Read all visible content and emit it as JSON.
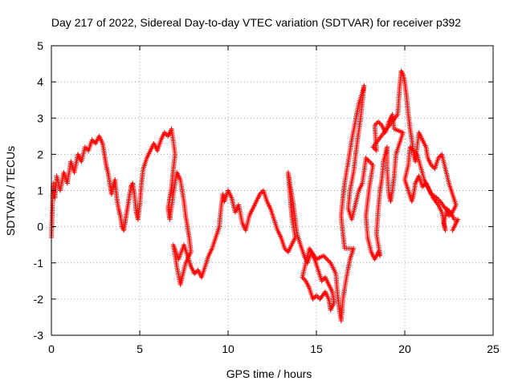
{
  "chart_data": {
    "type": "scatter",
    "title": "Day 217 of 2022, Sidereal Day-to-day VTEC variation (SDTVAR) for receiver p392",
    "xlabel": "GPS time / hours",
    "ylabel": "SDTVAR / TECUs",
    "xlim": [
      0,
      25
    ],
    "ylim": [
      -3,
      5
    ],
    "xticks": [
      0,
      5,
      10,
      15,
      20,
      25
    ],
    "yticks": [
      -3,
      -2,
      -1,
      0,
      1,
      2,
      3,
      4,
      5
    ],
    "grid": true,
    "marker": "+",
    "series": [
      {
        "name": "SDTVAR",
        "color": "#ff0000",
        "points": [
          [
            0.0,
            -0.3
          ],
          [
            0.05,
            0.4
          ],
          [
            0.1,
            1.2
          ],
          [
            0.2,
            0.8
          ],
          [
            0.3,
            1.4
          ],
          [
            0.5,
            1.0
          ],
          [
            0.7,
            1.5
          ],
          [
            0.9,
            1.2
          ],
          [
            1.1,
            1.8
          ],
          [
            1.3,
            1.5
          ],
          [
            1.5,
            2.0
          ],
          [
            1.7,
            1.8
          ],
          [
            1.9,
            2.2
          ],
          [
            2.1,
            2.1
          ],
          [
            2.3,
            2.4
          ],
          [
            2.5,
            2.3
          ],
          [
            2.7,
            2.5
          ],
          [
            2.9,
            2.3
          ],
          [
            3.0,
            2.0
          ],
          [
            3.1,
            1.7
          ],
          [
            3.2,
            1.5
          ],
          [
            3.3,
            1.2
          ],
          [
            3.4,
            0.9
          ],
          [
            3.5,
            1.1
          ],
          [
            3.6,
            1.3
          ],
          [
            3.7,
            0.8
          ],
          [
            3.8,
            0.5
          ],
          [
            3.9,
            0.3
          ],
          [
            4.0,
            0.0
          ],
          [
            4.1,
            -0.1
          ],
          [
            4.2,
            0.2
          ],
          [
            4.3,
            0.5
          ],
          [
            4.4,
            0.8
          ],
          [
            4.5,
            1.1
          ],
          [
            4.6,
            1.2
          ],
          [
            4.7,
            0.9
          ],
          [
            4.8,
            0.4
          ],
          [
            4.9,
            0.2
          ],
          [
            5.0,
            0.6
          ],
          [
            5.1,
            1.2
          ],
          [
            5.2,
            1.6
          ],
          [
            5.4,
            1.9
          ],
          [
            5.6,
            2.1
          ],
          [
            5.8,
            2.3
          ],
          [
            6.0,
            2.1
          ],
          [
            6.2,
            2.4
          ],
          [
            6.4,
            2.6
          ],
          [
            6.6,
            2.5
          ],
          [
            6.8,
            2.7
          ],
          [
            7.0,
            2.0
          ],
          [
            6.9,
            1.6
          ],
          [
            6.8,
            1.1
          ],
          [
            6.7,
            0.8
          ],
          [
            6.6,
            0.5
          ],
          [
            6.7,
            0.2
          ],
          [
            6.9,
            0.9
          ],
          [
            7.1,
            1.5
          ],
          [
            7.3,
            1.3
          ],
          [
            7.5,
            0.7
          ],
          [
            7.6,
            0.3
          ],
          [
            7.7,
            0.0
          ],
          [
            7.8,
            -0.3
          ],
          [
            7.9,
            -0.7
          ],
          [
            7.6,
            -1.0
          ],
          [
            7.4,
            -1.4
          ],
          [
            7.3,
            -1.6
          ],
          [
            7.1,
            -1.1
          ],
          [
            6.9,
            -0.5
          ],
          [
            7.2,
            -0.9
          ],
          [
            7.5,
            -0.5
          ],
          [
            7.7,
            -0.8
          ],
          [
            7.9,
            -1.1
          ],
          [
            8.1,
            -1.3
          ],
          [
            8.3,
            -1.2
          ],
          [
            8.5,
            -1.4
          ],
          [
            8.7,
            -1.1
          ],
          [
            8.9,
            -0.8
          ],
          [
            9.1,
            -0.6
          ],
          [
            9.3,
            -0.3
          ],
          [
            9.5,
            0.0
          ],
          [
            9.6,
            0.5
          ],
          [
            9.7,
            0.9
          ],
          [
            9.8,
            0.7
          ],
          [
            10.0,
            1.0
          ],
          [
            10.2,
            0.8
          ],
          [
            10.4,
            0.4
          ],
          [
            10.6,
            0.6
          ],
          [
            10.8,
            0.1
          ],
          [
            11.0,
            -0.1
          ],
          [
            11.2,
            0.3
          ],
          [
            11.4,
            0.5
          ],
          [
            11.6,
            0.7
          ],
          [
            11.8,
            0.9
          ],
          [
            12.0,
            1.0
          ],
          [
            12.2,
            0.7
          ],
          [
            12.4,
            0.5
          ],
          [
            12.6,
            0.2
          ],
          [
            12.8,
            -0.1
          ],
          [
            13.0,
            -0.3
          ],
          [
            13.2,
            -0.6
          ],
          [
            13.4,
            -0.7
          ],
          [
            13.6,
            -0.5
          ],
          [
            13.8,
            -0.3
          ],
          [
            13.6,
            0.3
          ],
          [
            13.5,
            0.9
          ],
          [
            13.4,
            1.5
          ],
          [
            13.7,
            0.6
          ],
          [
            13.9,
            -0.2
          ],
          [
            14.1,
            -0.5
          ],
          [
            14.3,
            -0.8
          ],
          [
            14.5,
            -1.0
          ],
          [
            14.7,
            -0.7
          ],
          [
            14.9,
            -0.9
          ],
          [
            15.1,
            -1.2
          ],
          [
            15.3,
            -1.5
          ],
          [
            15.5,
            -1.4
          ],
          [
            15.7,
            -1.6
          ],
          [
            15.9,
            -1.8
          ],
          [
            16.0,
            -2.1
          ],
          [
            15.8,
            -2.3
          ],
          [
            15.7,
            -2.0
          ],
          [
            15.5,
            -1.8
          ],
          [
            15.2,
            -2.0
          ],
          [
            15.0,
            -1.9
          ],
          [
            14.8,
            -2.0
          ],
          [
            14.6,
            -1.7
          ],
          [
            14.4,
            -1.5
          ],
          [
            14.2,
            -1.4
          ],
          [
            14.6,
            -0.6
          ],
          [
            15.0,
            -0.9
          ],
          [
            15.4,
            -0.8
          ],
          [
            15.8,
            -1.0
          ],
          [
            16.1,
            -1.3
          ],
          [
            16.2,
            -1.9
          ],
          [
            16.3,
            -2.3
          ],
          [
            16.4,
            -2.6
          ],
          [
            16.5,
            -2.0
          ],
          [
            16.7,
            -1.4
          ],
          [
            16.9,
            -0.9
          ],
          [
            17.1,
            -0.6
          ],
          [
            16.6,
            -0.6
          ],
          [
            16.5,
            -0.2
          ],
          [
            16.4,
            0.3
          ],
          [
            16.5,
            0.8
          ],
          [
            16.6,
            1.2
          ],
          [
            16.8,
            1.8
          ],
          [
            17.0,
            2.4
          ],
          [
            17.2,
            2.9
          ],
          [
            17.4,
            3.4
          ],
          [
            17.6,
            3.7
          ],
          [
            17.7,
            3.9
          ],
          [
            17.5,
            3.0
          ],
          [
            17.3,
            2.3
          ],
          [
            17.1,
            1.5
          ],
          [
            16.9,
            1.0
          ],
          [
            16.8,
            0.5
          ],
          [
            17.0,
            0.2
          ],
          [
            17.2,
            0.6
          ],
          [
            17.4,
            1.0
          ],
          [
            17.6,
            1.2
          ],
          [
            17.8,
            1.9
          ],
          [
            18.0,
            1.8
          ],
          [
            18.2,
            1.7
          ],
          [
            18.0,
            1.1
          ],
          [
            17.9,
            0.7
          ],
          [
            17.8,
            0.3
          ],
          [
            17.9,
            -0.3
          ],
          [
            18.1,
            -0.7
          ],
          [
            18.3,
            -0.9
          ],
          [
            18.5,
            -0.7
          ],
          [
            18.6,
            -0.8
          ],
          [
            18.4,
            -0.2
          ],
          [
            18.5,
            0.5
          ],
          [
            18.6,
            1.0
          ],
          [
            18.7,
            1.3
          ],
          [
            18.8,
            1.8
          ],
          [
            18.9,
            2.0
          ],
          [
            19.0,
            2.2
          ],
          [
            19.0,
            1.6
          ],
          [
            19.1,
            0.9
          ],
          [
            19.2,
            0.7
          ],
          [
            19.3,
            1.0
          ],
          [
            19.4,
            1.4
          ],
          [
            19.5,
            2.0
          ],
          [
            19.7,
            2.3
          ],
          [
            19.9,
            2.6
          ],
          [
            19.4,
            2.7
          ],
          [
            19.3,
            3.1
          ],
          [
            19.1,
            2.9
          ],
          [
            18.9,
            2.6
          ],
          [
            18.7,
            2.8
          ],
          [
            18.5,
            2.9
          ],
          [
            18.3,
            2.8
          ],
          [
            18.4,
            2.1
          ],
          [
            18.2,
            2.2
          ],
          [
            19.6,
            3.1
          ],
          [
            19.7,
            3.8
          ],
          [
            19.8,
            4.3
          ],
          [
            19.9,
            4.2
          ],
          [
            20.0,
            4.0
          ],
          [
            20.1,
            3.6
          ],
          [
            20.2,
            3.1
          ],
          [
            20.3,
            2.7
          ],
          [
            20.4,
            2.4
          ],
          [
            20.5,
            2.0
          ],
          [
            20.6,
            1.8
          ],
          [
            20.8,
            2.6
          ],
          [
            21.0,
            2.4
          ],
          [
            21.2,
            2.2
          ],
          [
            21.3,
            1.9
          ],
          [
            21.5,
            1.7
          ],
          [
            21.7,
            1.6
          ],
          [
            21.9,
            1.9
          ],
          [
            22.1,
            2.0
          ],
          [
            22.3,
            1.6
          ],
          [
            22.5,
            1.2
          ],
          [
            22.7,
            0.9
          ],
          [
            22.9,
            0.6
          ],
          [
            22.7,
            0.4
          ],
          [
            22.5,
            0.3
          ],
          [
            22.4,
            0.5
          ],
          [
            22.2,
            0.1
          ],
          [
            22.3,
            -0.1
          ],
          [
            22.1,
            0.4
          ],
          [
            21.9,
            0.6
          ],
          [
            21.6,
            0.8
          ],
          [
            21.4,
            1.0
          ],
          [
            21.2,
            1.2
          ],
          [
            21.0,
            1.1
          ],
          [
            20.8,
            1.4
          ],
          [
            20.6,
            1.2
          ],
          [
            20.5,
            0.9
          ],
          [
            20.4,
            0.7
          ],
          [
            20.2,
            1.0
          ],
          [
            20.0,
            1.3
          ],
          [
            20.2,
            1.7
          ],
          [
            20.3,
            2.2
          ],
          [
            20.7,
            2.0
          ],
          [
            21.1,
            1.3
          ],
          [
            21.5,
            0.9
          ],
          [
            21.8,
            0.8
          ],
          [
            22.0,
            0.7
          ],
          [
            22.3,
            0.5
          ],
          [
            22.6,
            0.4
          ],
          [
            22.8,
            0.2
          ],
          [
            23.0,
            0.2
          ],
          [
            22.9,
            0.1
          ],
          [
            22.7,
            -0.1
          ]
        ]
      }
    ]
  }
}
